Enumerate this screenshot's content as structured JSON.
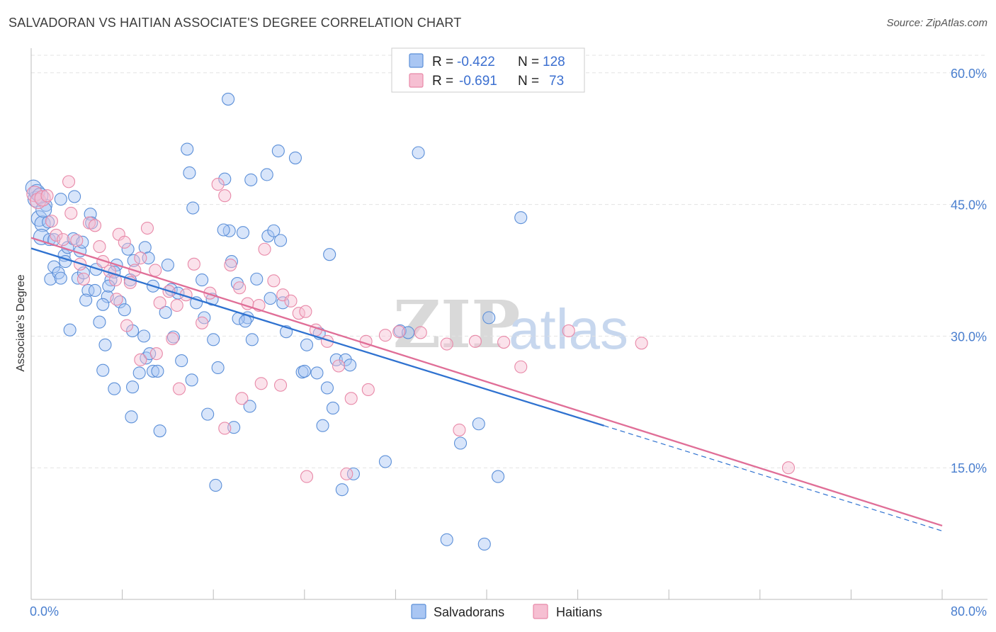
{
  "title": "SALVADORAN VS HAITIAN ASSOCIATE'S DEGREE CORRELATION CHART",
  "source": "Source: ZipAtlas.com",
  "colors": {
    "salvadoran_fill": "#a9c6f3",
    "salvadoran_stroke": "#5b8fd8",
    "salvadoran_line": "#2f72d0",
    "haitian_fill": "#f6bfd2",
    "haitian_stroke": "#e889a8",
    "haitian_line": "#e06e97",
    "tick_blue": "#4a7fcf"
  },
  "legend": {
    "r_label": "R =",
    "n_label": "N =",
    "rows": [
      {
        "r": "-0.422",
        "n": "128"
      },
      {
        "r": "-0.691",
        "n": "73"
      }
    ]
  },
  "watermark": {
    "zip": "ZIP",
    "atlas": "atlas"
  },
  "chart_data": {
    "type": "scatter",
    "title": "SALVADORAN VS HAITIAN ASSOCIATE'S DEGREE CORRELATION CHART",
    "xlabel": "",
    "ylabel": "Associate's Degree",
    "xlim": [
      0,
      80
    ],
    "ylim": [
      0,
      62
    ],
    "x_tick_labels": [
      "0.0%",
      "80.0%"
    ],
    "y_ticks": [
      15,
      30,
      45,
      60
    ],
    "y_tick_labels": [
      "15.0%",
      "30.0%",
      "45.0%",
      "60.0%"
    ],
    "grid": true,
    "legend_position": "top-center",
    "series": [
      {
        "name": "Salvadorans",
        "r": -0.422,
        "n": 128,
        "trend": {
          "x0": 0,
          "y0": 40.0,
          "x1": 50.3,
          "y1": 19.8,
          "dash_x1": 80,
          "dash_y1": 7.8
        },
        "points": [
          [
            0.2,
            46.9
          ],
          [
            0.4,
            45.6
          ],
          [
            0.7,
            43.4
          ],
          [
            1.0,
            42.8
          ],
          [
            1.3,
            44.9
          ],
          [
            0.9,
            41.3
          ],
          [
            1.6,
            41.0
          ],
          [
            2.0,
            37.9
          ],
          [
            1.7,
            36.5
          ],
          [
            2.4,
            37.2
          ],
          [
            2.6,
            36.6
          ],
          [
            2.9,
            39.2
          ],
          [
            3.2,
            40.1
          ],
          [
            3.7,
            41.1
          ],
          [
            4.3,
            39.7
          ],
          [
            4.5,
            40.7
          ],
          [
            4.1,
            36.6
          ],
          [
            3.4,
            30.7
          ],
          [
            5.2,
            43.9
          ],
          [
            5.3,
            42.9
          ],
          [
            5.0,
            35.2
          ],
          [
            4.8,
            34.1
          ],
          [
            5.6,
            35.2
          ],
          [
            6.0,
            31.6
          ],
          [
            6.5,
            29.0
          ],
          [
            6.3,
            26.1
          ],
          [
            7.0,
            36.4
          ],
          [
            7.5,
            38.1
          ],
          [
            6.7,
            34.5
          ],
          [
            7.3,
            37.3
          ],
          [
            7.8,
            33.9
          ],
          [
            8.2,
            33.0
          ],
          [
            8.5,
            39.9
          ],
          [
            9.0,
            38.6
          ],
          [
            8.7,
            36.4
          ],
          [
            8.9,
            30.6
          ],
          [
            9.5,
            25.8
          ],
          [
            10.0,
            40.1
          ],
          [
            10.3,
            38.9
          ],
          [
            10.7,
            35.7
          ],
          [
            10.1,
            27.5
          ],
          [
            10.4,
            28.0
          ],
          [
            10.7,
            26.0
          ],
          [
            11.1,
            26.0
          ],
          [
            12.0,
            38.1
          ],
          [
            11.8,
            32.7
          ],
          [
            12.3,
            35.3
          ],
          [
            12.9,
            34.9
          ],
          [
            13.2,
            27.2
          ],
          [
            14.1,
            25.0
          ],
          [
            14.5,
            33.8
          ],
          [
            15.0,
            36.4
          ],
          [
            15.2,
            32.1
          ],
          [
            15.9,
            34.2
          ],
          [
            16.0,
            29.6
          ],
          [
            16.4,
            26.4
          ],
          [
            17.4,
            42.0
          ],
          [
            18.1,
            36.0
          ],
          [
            18.6,
            41.8
          ],
          [
            19.0,
            32.1
          ],
          [
            19.4,
            29.6
          ],
          [
            19.2,
            22.0
          ],
          [
            19.8,
            36.5
          ],
          [
            20.8,
            41.4
          ],
          [
            21.3,
            42.0
          ],
          [
            21.9,
            40.9
          ],
          [
            21.0,
            34.3
          ],
          [
            22.1,
            33.8
          ],
          [
            22.4,
            30.5
          ],
          [
            24.2,
            29.0
          ],
          [
            25.3,
            30.3
          ],
          [
            26.2,
            39.3
          ],
          [
            26.8,
            27.3
          ],
          [
            27.6,
            27.3
          ],
          [
            28.0,
            26.7
          ],
          [
            23.8,
            25.9
          ],
          [
            24.0,
            26.0
          ],
          [
            25.1,
            25.8
          ],
          [
            26.0,
            24.1
          ],
          [
            26.5,
            21.8
          ],
          [
            25.6,
            19.8
          ],
          [
            32.4,
            30.6
          ],
          [
            33.1,
            30.4
          ],
          [
            40.2,
            32.1
          ],
          [
            34.0,
            50.9
          ],
          [
            43.0,
            43.5
          ],
          [
            39.3,
            20.0
          ],
          [
            37.7,
            17.8
          ],
          [
            36.5,
            6.8
          ],
          [
            39.8,
            6.3
          ],
          [
            31.1,
            15.7
          ],
          [
            28.3,
            14.3
          ],
          [
            27.3,
            12.5
          ],
          [
            41.0,
            14.0
          ],
          [
            21.7,
            51.1
          ],
          [
            23.2,
            50.3
          ],
          [
            17.0,
            47.9
          ],
          [
            19.3,
            47.8
          ],
          [
            20.7,
            48.4
          ],
          [
            17.3,
            57.0
          ],
          [
            13.7,
            51.3
          ],
          [
            13.9,
            48.6
          ],
          [
            14.2,
            44.6
          ],
          [
            16.9,
            42.1
          ],
          [
            17.6,
            38.5
          ],
          [
            18.2,
            32.0
          ],
          [
            18.8,
            31.7
          ],
          [
            15.5,
            21.1
          ],
          [
            17.8,
            19.6
          ],
          [
            16.2,
            13.0
          ],
          [
            11.3,
            19.2
          ],
          [
            8.8,
            20.8
          ],
          [
            7.3,
            24.0
          ],
          [
            8.9,
            24.2
          ],
          [
            12.5,
            29.9
          ],
          [
            9.9,
            30.0
          ],
          [
            6.3,
            33.6
          ],
          [
            3.8,
            45.9
          ],
          [
            2.6,
            45.6
          ],
          [
            1.5,
            43.0
          ],
          [
            0.5,
            46.4
          ],
          [
            0.8,
            46.0
          ],
          [
            1.1,
            44.4
          ],
          [
            2.0,
            41.0
          ],
          [
            3.0,
            38.5
          ],
          [
            4.6,
            37.2
          ],
          [
            5.7,
            37.6
          ],
          [
            6.8,
            35.7
          ]
        ]
      },
      {
        "name": "Haitians",
        "r": -0.691,
        "n": 73,
        "trend": {
          "x0": 0,
          "y0": 41.2,
          "x1": 80,
          "y1": 8.4
        },
        "points": [
          [
            0.3,
            46.2
          ],
          [
            0.6,
            45.4
          ],
          [
            1.0,
            45.7
          ],
          [
            1.4,
            46.0
          ],
          [
            1.8,
            43.1
          ],
          [
            2.2,
            41.5
          ],
          [
            2.8,
            41.0
          ],
          [
            3.3,
            47.6
          ],
          [
            3.5,
            44.0
          ],
          [
            4.0,
            40.9
          ],
          [
            4.3,
            38.2
          ],
          [
            4.6,
            36.5
          ],
          [
            5.1,
            42.9
          ],
          [
            5.6,
            42.6
          ],
          [
            6.0,
            40.2
          ],
          [
            6.3,
            38.5
          ],
          [
            6.9,
            37.4
          ],
          [
            7.4,
            36.4
          ],
          [
            7.7,
            41.6
          ],
          [
            8.2,
            40.7
          ],
          [
            8.7,
            36.1
          ],
          [
            9.1,
            37.5
          ],
          [
            9.6,
            38.9
          ],
          [
            10.2,
            42.3
          ],
          [
            10.9,
            37.5
          ],
          [
            11.3,
            33.8
          ],
          [
            12.1,
            35.1
          ],
          [
            12.8,
            33.5
          ],
          [
            13.6,
            34.7
          ],
          [
            14.3,
            38.2
          ],
          [
            15.0,
            31.5
          ],
          [
            15.7,
            34.9
          ],
          [
            16.4,
            47.3
          ],
          [
            17.0,
            46.0
          ],
          [
            17.5,
            38.1
          ],
          [
            18.3,
            35.5
          ],
          [
            19.0,
            33.7
          ],
          [
            20.0,
            33.5
          ],
          [
            20.5,
            39.9
          ],
          [
            21.3,
            36.3
          ],
          [
            22.1,
            34.7
          ],
          [
            22.8,
            34.0
          ],
          [
            23.5,
            32.6
          ],
          [
            24.1,
            32.8
          ],
          [
            25.0,
            30.7
          ],
          [
            26.0,
            29.4
          ],
          [
            27.0,
            26.6
          ],
          [
            28.1,
            22.9
          ],
          [
            29.6,
            23.9
          ],
          [
            29.4,
            29.4
          ],
          [
            31.1,
            30.1
          ],
          [
            32.3,
            30.5
          ],
          [
            34.2,
            30.4
          ],
          [
            36.5,
            29.1
          ],
          [
            37.6,
            19.3
          ],
          [
            39.0,
            29.4
          ],
          [
            41.5,
            29.3
          ],
          [
            43.0,
            26.5
          ],
          [
            47.2,
            30.6
          ],
          [
            53.6,
            29.2
          ],
          [
            66.5,
            15.0
          ],
          [
            27.7,
            14.3
          ],
          [
            24.2,
            14.0
          ],
          [
            17.0,
            19.5
          ],
          [
            18.5,
            22.9
          ],
          [
            20.2,
            24.6
          ],
          [
            21.9,
            24.4
          ],
          [
            13.0,
            24.0
          ],
          [
            12.4,
            29.7
          ],
          [
            11.0,
            28.0
          ],
          [
            9.6,
            27.3
          ],
          [
            8.4,
            31.2
          ],
          [
            7.5,
            34.2
          ]
        ]
      }
    ]
  },
  "bottom_legend": [
    "Salvadorans",
    "Haitians"
  ]
}
